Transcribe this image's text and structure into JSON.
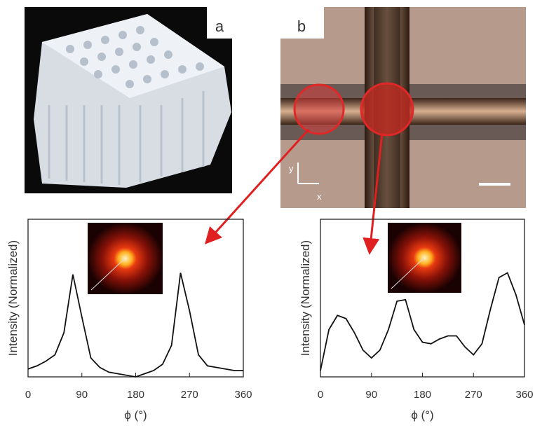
{
  "panels": {
    "a": {
      "label": "a"
    },
    "b": {
      "label": "b",
      "axis_y": "y",
      "axis_x": "x"
    }
  },
  "chart_data": [
    {
      "type": "line",
      "xlabel": "ϕ (°)",
      "ylabel": "Intensity (Normalized)",
      "x": [
        0,
        15,
        30,
        45,
        60,
        75,
        90,
        105,
        120,
        135,
        150,
        165,
        180,
        195,
        210,
        225,
        240,
        255,
        270,
        285,
        300,
        315,
        330,
        345,
        360
      ],
      "values": [
        0.05,
        0.07,
        0.1,
        0.14,
        0.28,
        0.65,
        0.38,
        0.12,
        0.06,
        0.03,
        0.02,
        0.01,
        0.0,
        0.02,
        0.04,
        0.08,
        0.2,
        0.66,
        0.42,
        0.14,
        0.07,
        0.06,
        0.05,
        0.04,
        0.04
      ],
      "color": "#111111",
      "xlim": [
        0,
        360
      ],
      "ylim": [
        0,
        1
      ],
      "xticks": [
        0,
        90,
        180,
        270,
        360
      ]
    },
    {
      "type": "line",
      "xlabel": "ϕ (°)",
      "ylabel": "Intensity (Normalized)",
      "x": [
        0,
        15,
        30,
        45,
        60,
        75,
        90,
        105,
        120,
        135,
        150,
        165,
        180,
        195,
        210,
        225,
        240,
        255,
        270,
        285,
        300,
        315,
        330,
        345,
        360
      ],
      "values": [
        0.04,
        0.3,
        0.39,
        0.37,
        0.28,
        0.17,
        0.12,
        0.17,
        0.3,
        0.48,
        0.49,
        0.3,
        0.22,
        0.21,
        0.24,
        0.26,
        0.26,
        0.19,
        0.14,
        0.21,
        0.43,
        0.63,
        0.66,
        0.52,
        0.33
      ],
      "color": "#111111",
      "xlim": [
        0,
        360
      ],
      "ylim": [
        0,
        1
      ],
      "xticks": [
        0,
        90,
        180,
        270,
        360
      ]
    }
  ]
}
